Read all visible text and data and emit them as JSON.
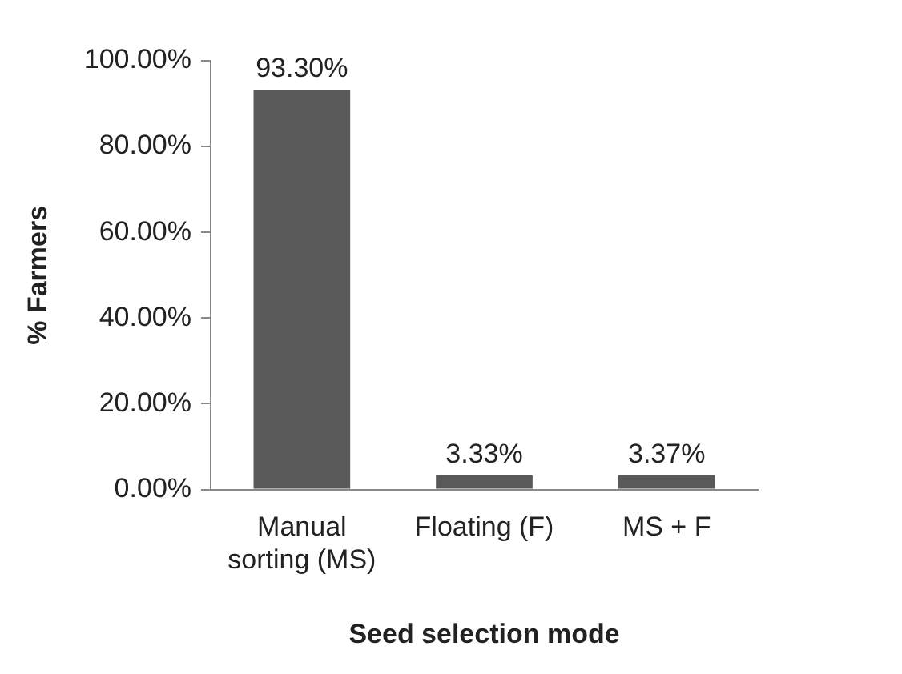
{
  "chart_data": {
    "type": "bar",
    "xlabel": "Seed selection mode",
    "ylabel": "% Farmers",
    "categories": [
      "Manual sorting (MS)",
      "Floating (F)",
      "MS + F"
    ],
    "values": [
      93.3,
      3.33,
      3.37
    ],
    "value_labels": [
      "93.30%",
      "3.33%",
      "3.37%"
    ],
    "color": "#595959",
    "ylim": [
      0,
      100
    ],
    "yticks": [
      {
        "value": 0,
        "label": "0.00%"
      },
      {
        "value": 20,
        "label": "20.00%"
      },
      {
        "value": 40,
        "label": "40.00%"
      },
      {
        "value": 60,
        "label": "60.00%"
      },
      {
        "value": 80,
        "label": "80.00%"
      },
      {
        "value": 100,
        "label": "100.00%"
      }
    ],
    "grid": false,
    "legend": false
  }
}
